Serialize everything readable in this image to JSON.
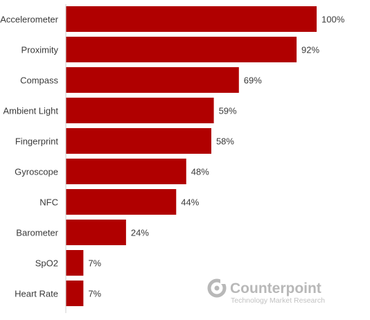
{
  "chart_data": {
    "type": "bar",
    "orientation": "horizontal",
    "categories": [
      "Accelerometer",
      "Proximity",
      "Compass",
      "Ambient Light",
      "Fingerprint",
      "Gyroscope",
      "NFC",
      "Barometer",
      "SpO2",
      "Heart Rate"
    ],
    "values": [
      100,
      92,
      69,
      59,
      58,
      48,
      44,
      24,
      7,
      7
    ],
    "value_labels": [
      "100%",
      "92%",
      "69%",
      "59%",
      "58%",
      "48%",
      "44%",
      "24%",
      "7%",
      "7%"
    ],
    "xlim": [
      0,
      100
    ],
    "bar_color": "#b00000",
    "grid": false,
    "legend": false
  },
  "watermark": {
    "name": "Counterpoint",
    "tagline": "Technology Market Research",
    "icon": "counterpoint-logo-icon",
    "color": "#b8b8b8"
  }
}
